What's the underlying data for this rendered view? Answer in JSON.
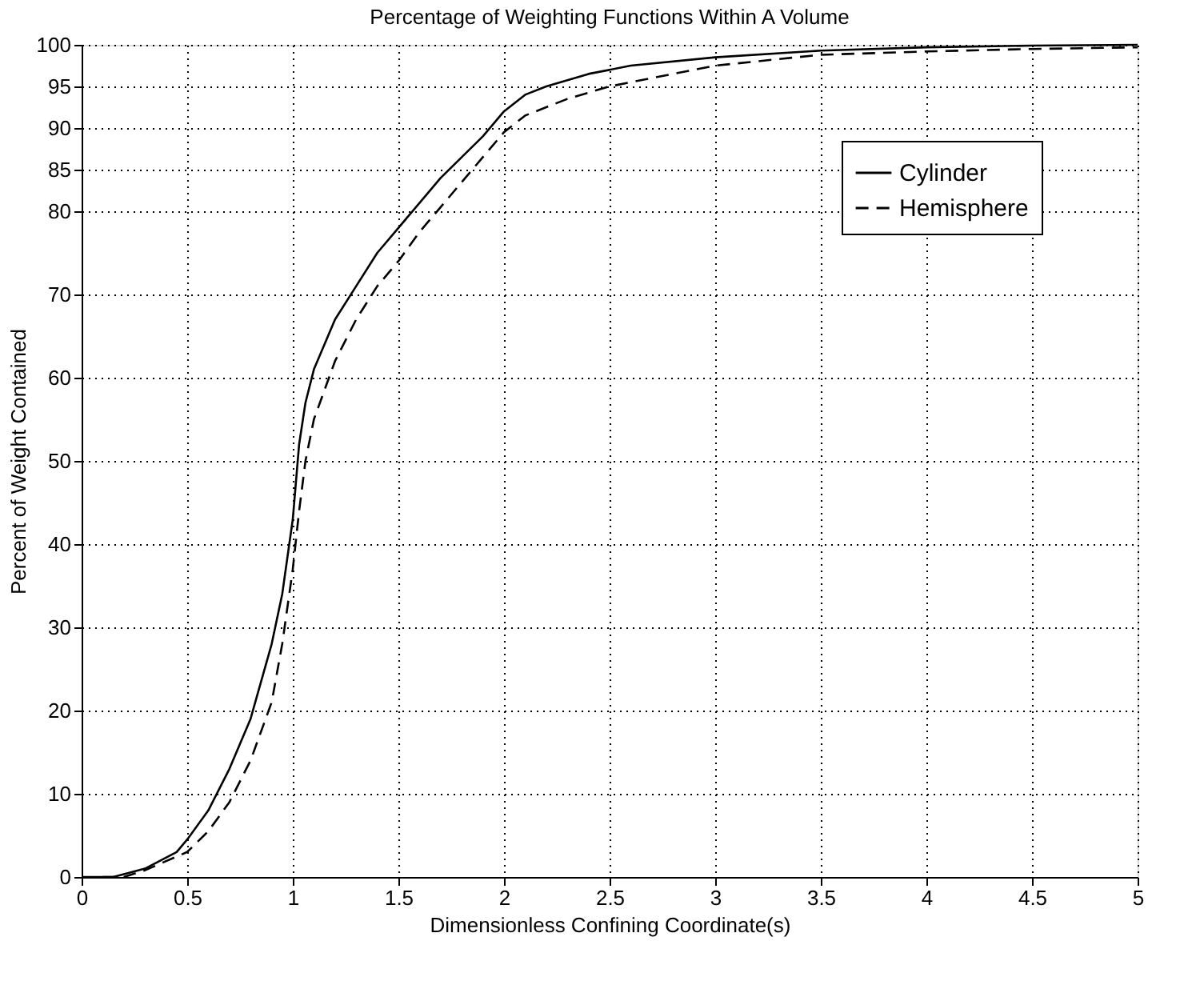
{
  "chart_data": {
    "type": "line",
    "title": "Percentage of Weighting Functions Within A Volume",
    "xlabel": "Dimensionless Confining Coordinate(s)",
    "ylabel": "Percent of Weight Contained",
    "xlim": [
      0,
      5
    ],
    "xticks": [
      0,
      0.5,
      1,
      1.5,
      2,
      2.5,
      3,
      3.5,
      4,
      4.5,
      5
    ],
    "ylim": [
      0,
      100
    ],
    "yticks": [
      0,
      10,
      20,
      30,
      40,
      50,
      60,
      70,
      80,
      85,
      90,
      95,
      100
    ],
    "grid": true,
    "legend": "top right",
    "marker": "none",
    "series": [
      {
        "name": "Cylinder",
        "color": "#000000",
        "line_style": "solid",
        "x": [
          0,
          0.15,
          0.3,
          0.45,
          0.5,
          0.6,
          0.7,
          0.8,
          0.9,
          0.95,
          1.0,
          1.03,
          1.06,
          1.1,
          1.2,
          1.3,
          1.4,
          1.5,
          1.6,
          1.7,
          1.8,
          1.9,
          2.0,
          2.1,
          2.2,
          2.4,
          2.6,
          3.0,
          3.5,
          4.0,
          4.5,
          5.0
        ],
        "values": [
          0,
          0,
          1,
          3,
          4.5,
          8,
          13,
          19,
          28,
          34,
          43,
          52,
          57,
          61,
          67,
          71,
          75,
          78,
          81,
          84,
          86.5,
          89,
          92,
          94,
          95,
          96.5,
          97.5,
          98.5,
          99.3,
          99.7,
          99.9,
          100
        ]
      },
      {
        "name": "Hemisphere",
        "color": "#000000",
        "line_style": "dashed",
        "x": [
          0.1,
          0.2,
          0.3,
          0.5,
          0.6,
          0.7,
          0.8,
          0.9,
          0.95,
          1.0,
          1.03,
          1.06,
          1.1,
          1.2,
          1.3,
          1.4,
          1.5,
          1.6,
          1.7,
          1.8,
          1.9,
          2.0,
          2.1,
          2.3,
          2.5,
          2.8,
          3.0,
          3.5,
          4.0,
          4.5,
          5.0
        ],
        "values": [
          0,
          0,
          0.8,
          3,
          5.5,
          9,
          14,
          21,
          28,
          37,
          44,
          50,
          55,
          62,
          67,
          71,
          74,
          77.5,
          80.5,
          83.5,
          86.5,
          89.5,
          91.5,
          93.5,
          95,
          96.5,
          97.5,
          98.8,
          99.2,
          99.5,
          99.7
        ]
      }
    ]
  }
}
